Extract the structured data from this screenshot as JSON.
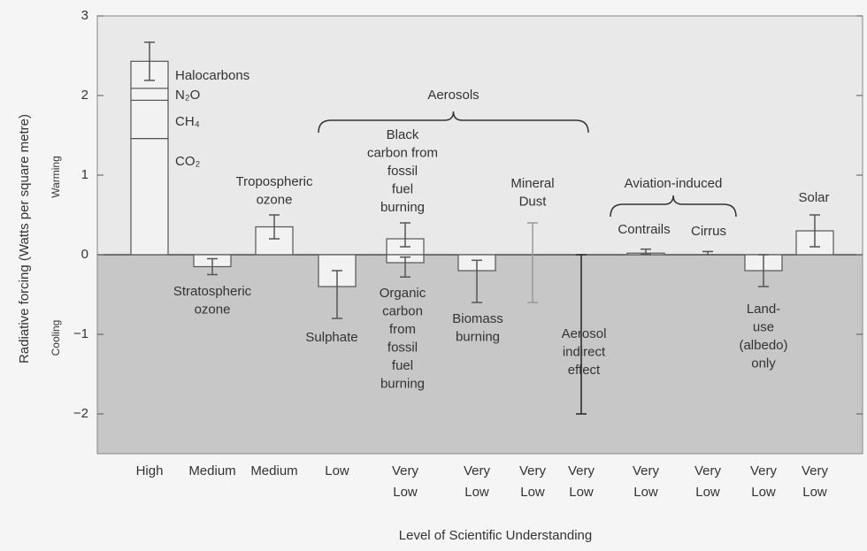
{
  "chart_data": {
    "type": "bar",
    "y_label": "Radiative forcing (Watts per square metre)",
    "warming_label": "Warming",
    "cooling_label": "Cooling",
    "x_label": "Level of Scientific Understanding",
    "ylim": [
      -2.5,
      3
    ],
    "yticks": [
      3,
      2,
      1,
      0,
      {
        "value": -1,
        "label": "−1"
      },
      {
        "value": -2,
        "label": "−2"
      }
    ],
    "warming_color": "#e9e9e9",
    "cooling_color": "#c7c7c7",
    "bar_color": "#f2f2f2",
    "line_color": "#555555",
    "categories": [
      [
        "High"
      ],
      [
        "Medium"
      ],
      [
        "Medium"
      ],
      [
        "Low"
      ],
      [
        "Very",
        "Low"
      ],
      [
        "Very",
        "Low"
      ],
      [
        "Very",
        "Low"
      ],
      [
        "Very",
        "Low"
      ],
      [
        "Very",
        "Low"
      ],
      [
        "Very",
        "Low"
      ],
      [
        "Very",
        "Low"
      ],
      [
        "Very",
        "Low"
      ]
    ],
    "groups": [
      {
        "label": "Aerosols",
        "from": 3,
        "to": 7
      },
      {
        "label": "Aviation-induced",
        "from": 8,
        "to": 9
      }
    ],
    "bars": [
      {
        "items": [
          {
            "stack": [
              {
                "name": "CO₂",
                "value": 1.46
              },
              {
                "name": "CH₄",
                "value": 0.48
              },
              {
                "name": "N₂O",
                "value": 0.15
              },
              {
                "name": "Halocarbons",
                "value": 0.34
              }
            ],
            "range": [
              2.19,
              2.67
            ]
          }
        ]
      },
      {
        "items": [
          {
            "label": [
              "Stratospheric",
              "ozone"
            ],
            "value": -0.15,
            "range": [
              -0.25,
              -0.05
            ]
          }
        ]
      },
      {
        "items": [
          {
            "label": [
              "Tropospheric",
              "ozone"
            ],
            "value": 0.35,
            "range": [
              0.2,
              0.5
            ]
          }
        ]
      },
      {
        "items": [
          {
            "label": [
              "Sulphate"
            ],
            "value": -0.4,
            "range": [
              -0.8,
              -0.2
            ]
          }
        ]
      },
      {
        "items": [
          {
            "label": [
              "Black",
              "carbon from",
              "fossil",
              "fuel",
              "burning"
            ],
            "value": 0.2,
            "range": [
              0.1,
              0.4
            ]
          },
          {
            "label": [
              "Organic",
              "carbon",
              "from",
              "fossil",
              "fuel",
              "burning"
            ],
            "value": -0.1,
            "range": [
              -0.28,
              -0.03
            ]
          }
        ]
      },
      {
        "items": [
          {
            "label": [
              "Biomass",
              "burning"
            ],
            "value": -0.2,
            "range": [
              -0.6,
              -0.07
            ]
          }
        ]
      },
      {
        "items": [
          {
            "label": [
              "Mineral",
              "Dust"
            ],
            "range": [
              -0.6,
              0.4
            ],
            "whisker_color": "#999999"
          }
        ]
      },
      {
        "items": [
          {
            "label": [
              "Aerosol",
              "indirect",
              "effect"
            ],
            "range": [
              -2,
              0
            ],
            "whisker_color": "#222222"
          }
        ]
      },
      {
        "items": [
          {
            "label": [
              "Contrails"
            ],
            "value": 0.02,
            "range": [
              0.005,
              0.07
            ]
          }
        ]
      },
      {
        "items": [
          {
            "label": [
              "Cirrus"
            ],
            "range": [
              0,
              0.04
            ]
          }
        ]
      },
      {
        "items": [
          {
            "label": [
              "Land-",
              "use",
              "(albedo)",
              "only"
            ],
            "value": -0.2,
            "range": [
              -0.4,
              0
            ]
          }
        ]
      },
      {
        "items": [
          {
            "label": [
              "Solar"
            ],
            "value": 0.3,
            "range": [
              0.1,
              0.5
            ]
          }
        ]
      }
    ]
  }
}
